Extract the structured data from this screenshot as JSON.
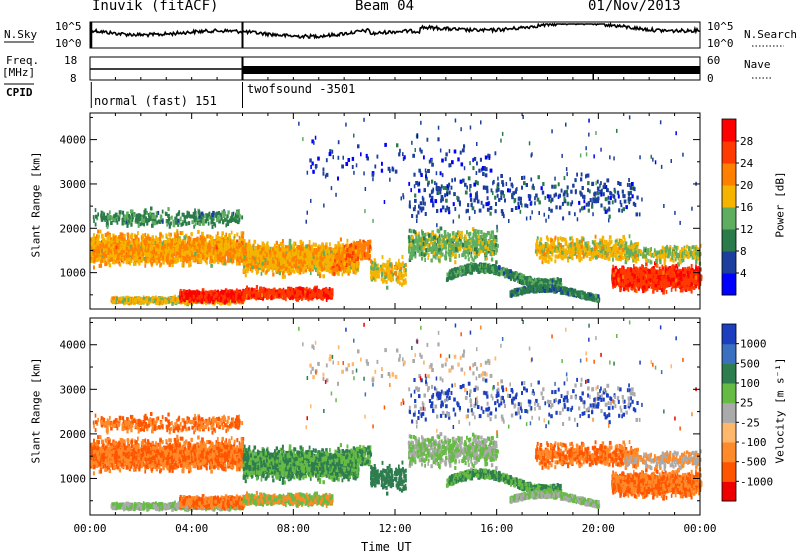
{
  "header": {
    "station": "Inuvik (fitACF)",
    "beam": "Beam 04",
    "date": "01/Nov/2013"
  },
  "labels": {
    "nsky": "N.Sky",
    "freq": "Freq.",
    "mhz": "[MHz]",
    "cpid": "CPID",
    "nsearch": "N.Search",
    "nave": "Nave"
  },
  "side_ticks": {
    "nsky_left": [
      "10^5",
      "10^0"
    ],
    "nsky_right": [
      "10^5",
      "10^0"
    ],
    "freq_left": [
      "18",
      "8"
    ],
    "nave_right": [
      "60",
      "0"
    ]
  },
  "cpid_segments": [
    {
      "label": "normal (fast) 151",
      "start_hour": 0,
      "end_hour": 6
    },
    {
      "label": "twofsound -3501",
      "start_hour": 6,
      "end_hour": 24
    }
  ],
  "chart_data": [
    {
      "type": "heatmap",
      "name": "power",
      "ylabel": "Slant Range [km]",
      "xlabel": "",
      "xlim": [
        0,
        24
      ],
      "ylim": [
        180,
        4600
      ],
      "yticks": [
        1000,
        2000,
        3000,
        4000
      ],
      "colorbar": {
        "label": "Power [dB]",
        "ticks": [
          4,
          8,
          12,
          16,
          20,
          24,
          28
        ],
        "colors": [
          "#0000ff",
          "#1c3f9e",
          "#2a7a4a",
          "#5fae5f",
          "#f4b400",
          "#ff7f00",
          "#ff3a00",
          "#ff0000"
        ]
      }
    },
    {
      "type": "heatmap",
      "name": "velocity",
      "ylabel": "Slant Range [km]",
      "xlabel": "Time UT",
      "xlim": [
        0,
        24
      ],
      "ylim": [
        180,
        4600
      ],
      "yticks": [
        1000,
        2000,
        3000,
        4000
      ],
      "xticks": [
        "00:00",
        "04:00",
        "08:00",
        "12:00",
        "16:00",
        "20:00",
        "00:00"
      ],
      "colorbar": {
        "label": "Velocity [m s⁻¹]",
        "ticks": [
          1000,
          500,
          100,
          25,
          -25,
          -100,
          -500,
          -1000
        ],
        "colors": [
          "#1c3fbf",
          "#3b6fbf",
          "#2e7d4f",
          "#66bb44",
          "#aaaaaa",
          "#ffb86b",
          "#ff8a2a",
          "#ff5500",
          "#ee0000"
        ]
      }
    }
  ]
}
